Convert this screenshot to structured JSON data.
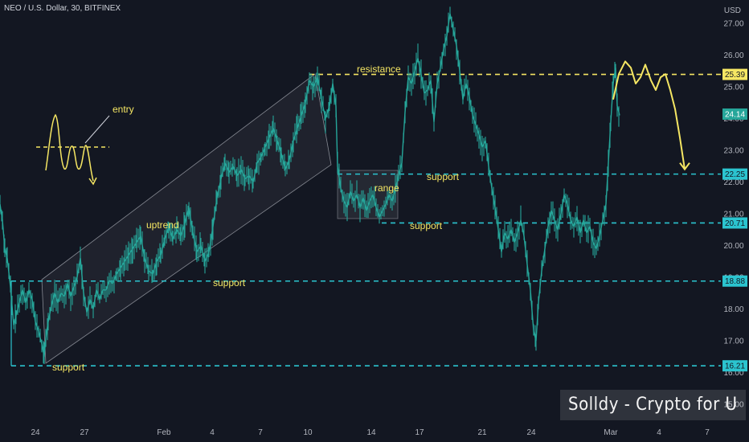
{
  "header": {
    "symbol_title": "NEO / U.S. Dollar, 30, BITFINEX",
    "currency": "USD"
  },
  "watermark": "Solldy - Crypto for U",
  "colors": {
    "background": "#131722",
    "candles": "#26a69a",
    "support_line": "#2bc4cf",
    "resistance_line": "#f5e663",
    "annotation_text": "#f5e663",
    "axis_text": "#b2b5be",
    "channel": "#e0e3eb"
  },
  "chart_data": {
    "type": "line",
    "x_tick_labels": [
      "24",
      "27",
      "Feb",
      "4",
      "7",
      "10",
      "14",
      "17",
      "21",
      "24",
      "Mar",
      "4",
      "7"
    ],
    "y_tick_labels": [
      "15.00",
      "16.00",
      "17.00",
      "18.00",
      "19.00",
      "20.00",
      "21.00",
      "22.00",
      "23.00",
      "24.00",
      "25.00",
      "26.00",
      "27.00"
    ],
    "ylim": [
      14.4,
      27.6
    ],
    "y_scale": "linear",
    "grid": false,
    "horizontal_levels": [
      {
        "label": "resistance",
        "price": 25.39,
        "price_tag": "25.39",
        "color": "#f5e663"
      },
      {
        "label": "support",
        "price": 22.25,
        "price_tag": "22.25",
        "color": "#2bc4cf"
      },
      {
        "label": "support",
        "price": 20.71,
        "price_tag": "20.71",
        "color": "#2bc4cf"
      },
      {
        "label": "support",
        "price": 18.88,
        "price_tag": "18.88",
        "color": "#2bc4cf"
      },
      {
        "label": "support",
        "price": 16.21,
        "price_tag": "16.21",
        "color": "#2bc4cf"
      }
    ],
    "last_price_tag": "24.14",
    "last_price": 24.14,
    "annotations": [
      {
        "text": "entry"
      },
      {
        "text": "uptrend"
      },
      {
        "text": "range"
      }
    ],
    "series": [
      {
        "values": [
          [
            0,
            21.3
          ],
          [
            3,
            20.8
          ],
          [
            6,
            19.9
          ],
          [
            9,
            19.6
          ],
          [
            13,
            18.7
          ],
          [
            17,
            17.5
          ],
          [
            20,
            17.8
          ],
          [
            24,
            18.2
          ],
          [
            28,
            18.6
          ],
          [
            32,
            18.2
          ],
          [
            36,
            18.6
          ],
          [
            40,
            18.3
          ],
          [
            44,
            17.6
          ],
          [
            48,
            17.3
          ],
          [
            52,
            16.9
          ],
          [
            55,
            16.5
          ],
          [
            57,
            17.1
          ],
          [
            60,
            17.6
          ],
          [
            64,
            18.1
          ],
          [
            68,
            18.5
          ],
          [
            72,
            18.2
          ],
          [
            76,
            18.5
          ],
          [
            80,
            18.4
          ],
          [
            84,
            18.8
          ],
          [
            88,
            18.4
          ],
          [
            92,
            18.7
          ],
          [
            96,
            19.0
          ],
          [
            100,
            19.6
          ],
          [
            104,
            18.5
          ],
          [
            108,
            17.9
          ],
          [
            112,
            18.3
          ],
          [
            116,
            18.0
          ],
          [
            120,
            18.6
          ],
          [
            124,
            18.3
          ],
          [
            128,
            18.6
          ],
          [
            132,
            18.6
          ],
          [
            136,
            18.9
          ],
          [
            140,
            18.8
          ],
          [
            145,
            19.1
          ],
          [
            150,
            19.3
          ],
          [
            155,
            19.5
          ],
          [
            160,
            19.7
          ],
          [
            165,
            19.9
          ],
          [
            170,
            20.1
          ],
          [
            175,
            20.3
          ],
          [
            180,
            19.6
          ],
          [
            185,
            19.2
          ],
          [
            190,
            19.1
          ],
          [
            195,
            19.5
          ],
          [
            200,
            19.7
          ],
          [
            205,
            20.2
          ],
          [
            210,
            20.6
          ],
          [
            215,
            20.2
          ],
          [
            220,
            20.5
          ],
          [
            225,
            20.3
          ],
          [
            230,
            20.7
          ],
          [
            235,
            21.2
          ],
          [
            240,
            20.4
          ],
          [
            245,
            19.8
          ],
          [
            250,
            20.0
          ],
          [
            255,
            19.5
          ],
          [
            260,
            19.8
          ],
          [
            265,
            20.6
          ],
          [
            270,
            21.5
          ],
          [
            275,
            22.1
          ],
          [
            280,
            22.6
          ],
          [
            285,
            22.3
          ],
          [
            290,
            22.5
          ],
          [
            295,
            22.2
          ],
          [
            300,
            22.4
          ],
          [
            305,
            22.1
          ],
          [
            310,
            22.2
          ],
          [
            315,
            22.0
          ],
          [
            320,
            22.6
          ],
          [
            325,
            22.8
          ],
          [
            330,
            23.1
          ],
          [
            335,
            23.4
          ],
          [
            340,
            23.7
          ],
          [
            345,
            23.3
          ],
          [
            350,
            22.9
          ],
          [
            355,
            22.4
          ],
          [
            360,
            22.7
          ],
          [
            365,
            23.3
          ],
          [
            370,
            23.7
          ],
          [
            375,
            24.1
          ],
          [
            380,
            24.5
          ],
          [
            385,
            25.2
          ],
          [
            390,
            25.0
          ],
          [
            395,
            25.3
          ],
          [
            400,
            24.6
          ],
          [
            405,
            24.0
          ],
          [
            410,
            24.4
          ],
          [
            414,
            25.1
          ],
          [
            418,
            24.4
          ],
          [
            420,
            22.5
          ],
          [
            424,
            21.8
          ],
          [
            428,
            21.4
          ],
          [
            432,
            21.2
          ],
          [
            436,
            21.7
          ],
          [
            440,
            21.4
          ],
          [
            444,
            21.6
          ],
          [
            448,
            21.2
          ],
          [
            452,
            21.5
          ],
          [
            456,
            21.1
          ],
          [
            460,
            21.4
          ],
          [
            464,
            21.6
          ],
          [
            468,
            21.2
          ],
          [
            472,
            20.9
          ],
          [
            476,
            21.1
          ],
          [
            480,
            21.3
          ],
          [
            484,
            21.6
          ],
          [
            488,
            21.4
          ],
          [
            492,
            21.8
          ],
          [
            496,
            22.2
          ],
          [
            500,
            22.6
          ],
          [
            504,
            24.2
          ],
          [
            508,
            25.3
          ],
          [
            512,
            25.1
          ],
          [
            516,
            25.5
          ],
          [
            520,
            25.9
          ],
          [
            524,
            25.4
          ],
          [
            528,
            24.8
          ],
          [
            532,
            24.9
          ],
          [
            536,
            25.2
          ],
          [
            540,
            23.9
          ],
          [
            544,
            25.1
          ],
          [
            548,
            25.6
          ],
          [
            552,
            26.2
          ],
          [
            556,
            26.6
          ],
          [
            560,
            27.3
          ],
          [
            564,
            26.8
          ],
          [
            568,
            26.3
          ],
          [
            572,
            25.5
          ],
          [
            576,
            24.6
          ],
          [
            580,
            25.1
          ],
          [
            584,
            24.7
          ],
          [
            588,
            24.1
          ],
          [
            592,
            23.8
          ],
          [
            596,
            23.5
          ],
          [
            600,
            23.1
          ],
          [
            604,
            23.3
          ],
          [
            608,
            22.5
          ],
          [
            612,
            21.8
          ],
          [
            616,
            21.2
          ],
          [
            620,
            20.5
          ],
          [
            624,
            19.8
          ],
          [
            628,
            20.4
          ],
          [
            632,
            20.2
          ],
          [
            636,
            20.5
          ],
          [
            640,
            20.1
          ],
          [
            644,
            20.4
          ],
          [
            648,
            20.8
          ],
          [
            652,
            20.3
          ],
          [
            656,
            19.4
          ],
          [
            660,
            18.6
          ],
          [
            664,
            17.3
          ],
          [
            667,
            17.0
          ],
          [
            670,
            18.2
          ],
          [
            674,
            19.2
          ],
          [
            678,
            19.9
          ],
          [
            682,
            20.6
          ],
          [
            686,
            21.1
          ],
          [
            690,
            20.8
          ],
          [
            694,
            20.5
          ],
          [
            698,
            21.0
          ],
          [
            702,
            21.6
          ],
          [
            706,
            21.3
          ],
          [
            710,
            20.8
          ],
          [
            714,
            20.6
          ],
          [
            718,
            20.9
          ],
          [
            722,
            20.4
          ],
          [
            726,
            20.8
          ],
          [
            730,
            20.4
          ],
          [
            734,
            20.6
          ],
          [
            738,
            20.1
          ],
          [
            742,
            19.9
          ],
          [
            746,
            20.3
          ],
          [
            750,
            20.8
          ],
          [
            754,
            21.3
          ],
          [
            757,
            22.6
          ],
          [
            760,
            23.9
          ],
          [
            763,
            25.1
          ],
          [
            766,
            25.6
          ],
          [
            768,
            24.4
          ],
          [
            771,
            24.1
          ]
        ]
      }
    ],
    "projection": [
      [
        763,
        24.6
      ],
      [
        770,
        25.4
      ],
      [
        778,
        25.8
      ],
      [
        785,
        25.6
      ],
      [
        791,
        25.1
      ],
      [
        797,
        25.3
      ],
      [
        803,
        25.7
      ],
      [
        810,
        25.2
      ],
      [
        816,
        24.9
      ],
      [
        822,
        25.3
      ],
      [
        828,
        25.4
      ],
      [
        834,
        24.9
      ],
      [
        840,
        24.3
      ],
      [
        846,
        23.4
      ],
      [
        852,
        22.4
      ]
    ]
  }
}
